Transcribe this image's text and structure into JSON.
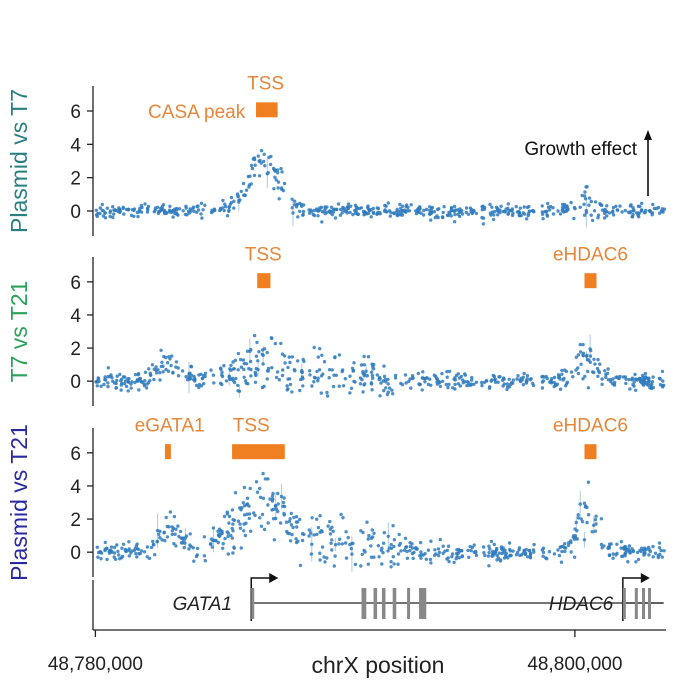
{
  "chart_data": {
    "type": "scatter",
    "xlabel": "chrX position",
    "x_range": [
      48779900,
      48803800
    ],
    "x_ticks": [
      48780000,
      48800000
    ],
    "x_tick_labels": [
      "48,780,000",
      "48,800,000"
    ],
    "growth_annotation": "Growth effect",
    "colors": {
      "points": "#2f7bbd",
      "region": "#f07f22",
      "region_text": "#e5873b",
      "gene_model": "#888888"
    },
    "panels": [
      {
        "ylabel": "Plasmid vs T7",
        "ylabel_color": "#2a8080",
        "ylim": [
          -1.5,
          7.5
        ],
        "yticks": [
          0,
          2,
          4,
          6
        ],
        "regions": [
          {
            "label": "TSS",
            "start": 48786700,
            "end": 48787600,
            "value": 6.1
          }
        ],
        "region_labels": [
          {
            "text": "TSS",
            "at": 48787100,
            "value": 7.7,
            "anchor": "middle"
          },
          {
            "text": "CASA peak",
            "at": 48786500,
            "value": 6.0,
            "anchor": "end"
          }
        ],
        "peaks": [
          {
            "center": 48787000,
            "width": 900,
            "height": 3.0,
            "spread": 0.7
          },
          {
            "center": 48800400,
            "width": 500,
            "height": 0.5,
            "spread": 0.4
          }
        ],
        "noise": 0.35,
        "density": 1.0
      },
      {
        "ylabel": "T7 vs T21",
        "ylabel_color": "#2aa25a",
        "ylim": [
          -1.5,
          7.5
        ],
        "yticks": [
          0,
          2,
          4,
          6
        ],
        "regions": [
          {
            "label": "TSS",
            "start": 48786750,
            "end": 48787300,
            "value": 6.1
          },
          {
            "label": "eHDAC6",
            "start": 48800400,
            "end": 48800900,
            "value": 6.1
          }
        ],
        "region_labels": [
          {
            "text": "TSS",
            "at": 48787000,
            "value": 7.7,
            "anchor": "middle"
          },
          {
            "text": "eHDAC6",
            "at": 48800650,
            "value": 7.7,
            "anchor": "middle"
          }
        ],
        "peaks": [
          {
            "center": 48783100,
            "width": 800,
            "height": 0.8,
            "spread": 0.6
          },
          {
            "center": 48787200,
            "width": 1600,
            "height": 1.0,
            "spread": 1.1
          },
          {
            "center": 48790500,
            "width": 2200,
            "height": 0.4,
            "spread": 0.8
          },
          {
            "center": 48800500,
            "width": 600,
            "height": 1.4,
            "spread": 0.8
          }
        ],
        "noise": 0.45,
        "density": 1.0
      },
      {
        "ylabel": "Plasmid vs T21",
        "ylabel_color": "#2a2aa0",
        "ylim": [
          -1.5,
          7.5
        ],
        "yticks": [
          0,
          2,
          4,
          6
        ],
        "regions": [
          {
            "label": "eGATA1",
            "start": 48782900,
            "end": 48783150,
            "value": 6.1
          },
          {
            "label": "TSS",
            "start": 48785700,
            "end": 48787900,
            "value": 6.1
          },
          {
            "label": "eHDAC6",
            "start": 48800400,
            "end": 48800900,
            "value": 6.1
          }
        ],
        "region_labels": [
          {
            "text": "eGATA1",
            "at": 48783100,
            "value": 7.7,
            "anchor": "middle"
          },
          {
            "text": "TSS",
            "at": 48786500,
            "value": 7.7,
            "anchor": "middle"
          },
          {
            "text": "eHDAC6",
            "at": 48800650,
            "value": 7.7,
            "anchor": "middle"
          }
        ],
        "peaks": [
          {
            "center": 48783100,
            "width": 700,
            "height": 1.2,
            "spread": 0.6
          },
          {
            "center": 48787000,
            "width": 1700,
            "height": 2.8,
            "spread": 1.2
          },
          {
            "center": 48790500,
            "width": 2200,
            "height": 0.6,
            "spread": 0.9
          },
          {
            "center": 48800500,
            "width": 600,
            "height": 2.0,
            "spread": 1.0
          }
        ],
        "noise": 0.45,
        "density": 1.0
      }
    ],
    "genes": [
      {
        "name": "GATA1",
        "tss": 48786500,
        "end": 48803700,
        "direction": "+",
        "exons": [
          [
            48786500,
            48786560
          ],
          [
            48791100,
            48791300
          ],
          [
            48791600,
            48791750
          ],
          [
            48791950,
            48792100
          ],
          [
            48792400,
            48792550
          ],
          [
            48793000,
            48793100
          ],
          [
            48793500,
            48793800
          ]
        ]
      },
      {
        "name": "HDAC6",
        "tss": 48802000,
        "end": 48803700,
        "direction": "+",
        "exons": [
          [
            48802000,
            48802080
          ],
          [
            48802500,
            48802600
          ],
          [
            48802800,
            48802880
          ],
          [
            48803050,
            48803120
          ]
        ]
      }
    ],
    "gene_labels": [
      {
        "text": "GATA1",
        "at": 48785700
      },
      {
        "text": "HDAC6",
        "at": 48801600
      }
    ],
    "gaps": [
      [
        48784600,
        48784800
      ],
      [
        48788700,
        48788900
      ],
      [
        48795900,
        48796100
      ],
      [
        48798300,
        48798600
      ]
    ]
  }
}
